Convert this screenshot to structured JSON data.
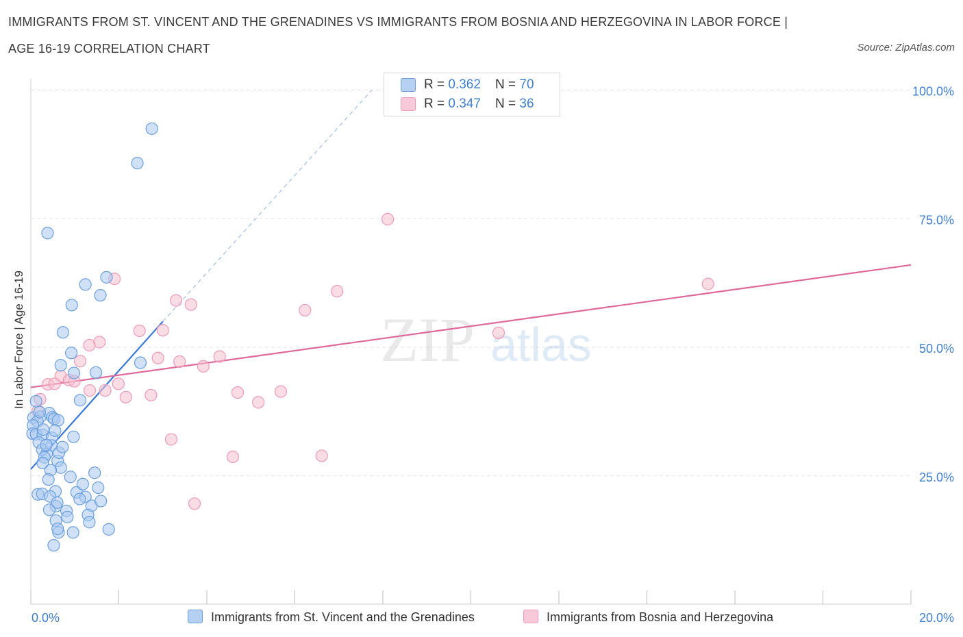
{
  "header": {
    "title_line1": "IMMIGRANTS FROM ST. VINCENT AND THE GRENADINES VS IMMIGRANTS FROM BOSNIA AND HERZEGOVINA IN LABOR FORCE |",
    "title_line2": "AGE 16-19 CORRELATION CHART",
    "source": "Source: ZipAtlas.com"
  },
  "legend": {
    "r_label": "R = ",
    "n_label": "N = ",
    "series1": {
      "r": "0.362",
      "n": "70"
    },
    "series2": {
      "r": "0.347",
      "n": "36"
    }
  },
  "watermark": {
    "zip": "ZIP",
    "atlas": "atlas"
  },
  "colors": {
    "blue_fill": "#a9c8f0",
    "blue_stroke": "#6b9fe0",
    "blue_line": "#3a78d6",
    "pink_fill": "#f6bfd0",
    "pink_stroke": "#ee9ab6",
    "pink_line": "#e0689a",
    "tick_label": "#3f7fd0",
    "grid": "#e3e3e3"
  },
  "chart_data": {
    "type": "scatter",
    "title": "IMMIGRANTS FROM ST. VINCENT AND THE GRENADINES VS IMMIGRANTS FROM BOSNIA AND HERZEGOVINA IN LABOR FORCE | AGE 16-19 CORRELATION CHART",
    "xlabel": "",
    "ylabel": "In Labor Force | Age 16-19",
    "xlim": [
      0,
      20
    ],
    "ylim": [
      0,
      100
    ],
    "x_tick_labels": {
      "left": "0.0%",
      "right": "20.0%"
    },
    "y_ticks": [
      {
        "value": 25,
        "label": "25.0%"
      },
      {
        "value": 50,
        "label": "50.0%"
      },
      {
        "value": 75,
        "label": "75.0%"
      },
      {
        "value": 100,
        "label": "100.0%"
      }
    ],
    "series": [
      {
        "name": "Immigrants from St. Vincent and the Grenadines",
        "color": "blue",
        "points": [
          [
            2.75,
            92.5
          ],
          [
            2.42,
            85.8
          ],
          [
            0.38,
            72.2
          ],
          [
            1.24,
            62.2
          ],
          [
            1.72,
            63.6
          ],
          [
            1.58,
            60.1
          ],
          [
            0.93,
            58.2
          ],
          [
            0.73,
            52.9
          ],
          [
            0.92,
            48.9
          ],
          [
            0.68,
            46.5
          ],
          [
            1.48,
            45.1
          ],
          [
            2.49,
            47.0
          ],
          [
            0.98,
            45.0
          ],
          [
            1.12,
            39.7
          ],
          [
            0.12,
            39.5
          ],
          [
            0.06,
            36.3
          ],
          [
            0.22,
            36.5
          ],
          [
            0.42,
            37.2
          ],
          [
            0.49,
            36.4
          ],
          [
            0.53,
            36.1
          ],
          [
            0.62,
            35.8
          ],
          [
            0.15,
            35.6
          ],
          [
            0.05,
            34.8
          ],
          [
            0.04,
            33.2
          ],
          [
            0.12,
            33.1
          ],
          [
            0.27,
            33.0
          ],
          [
            0.48,
            32.4
          ],
          [
            0.97,
            32.6
          ],
          [
            0.18,
            31.5
          ],
          [
            0.26,
            30.1
          ],
          [
            0.47,
            30.9
          ],
          [
            0.36,
            29.3
          ],
          [
            0.31,
            28.6
          ],
          [
            0.61,
            27.9
          ],
          [
            0.27,
            27.5
          ],
          [
            0.68,
            26.6
          ],
          [
            0.45,
            26.1
          ],
          [
            0.16,
            21.4
          ],
          [
            0.26,
            21.5
          ],
          [
            0.56,
            22.0
          ],
          [
            0.44,
            21.0
          ],
          [
            1.04,
            21.8
          ],
          [
            1.24,
            20.9
          ],
          [
            1.53,
            22.7
          ],
          [
            0.57,
            19.1
          ],
          [
            0.42,
            18.4
          ],
          [
            0.6,
            19.8
          ],
          [
            1.11,
            20.5
          ],
          [
            1.38,
            19.2
          ],
          [
            1.59,
            20.1
          ],
          [
            0.81,
            18.2
          ],
          [
            0.83,
            17.0
          ],
          [
            0.57,
            16.3
          ],
          [
            1.3,
            17.4
          ],
          [
            1.33,
            16.0
          ],
          [
            0.63,
            14.0
          ],
          [
            0.61,
            14.7
          ],
          [
            0.96,
            14.0
          ],
          [
            1.77,
            14.6
          ],
          [
            0.52,
            11.5
          ],
          [
            0.64,
            29.5
          ],
          [
            0.28,
            34.0
          ],
          [
            0.35,
            31.0
          ],
          [
            0.55,
            33.8
          ],
          [
            0.2,
            37.4
          ],
          [
            0.72,
            30.6
          ],
          [
            0.9,
            24.8
          ],
          [
            1.18,
            23.4
          ],
          [
            0.4,
            24.3
          ],
          [
            1.45,
            25.6
          ]
        ],
        "trend": {
          "x0": 0.0,
          "y0": 26.3,
          "x1": 3.0,
          "y1": 55.0,
          "dashed_to": [
            7.75,
            100.0
          ]
        }
      },
      {
        "name": "Immigrants from Bosnia and Herzegovina",
        "color": "pink",
        "points": [
          [
            8.11,
            74.9
          ],
          [
            15.39,
            62.3
          ],
          [
            1.9,
            63.3
          ],
          [
            6.96,
            60.9
          ],
          [
            3.3,
            59.1
          ],
          [
            3.64,
            58.3
          ],
          [
            6.23,
            57.2
          ],
          [
            3.0,
            53.3
          ],
          [
            2.47,
            53.2
          ],
          [
            10.63,
            52.8
          ],
          [
            1.56,
            51.0
          ],
          [
            1.33,
            50.4
          ],
          [
            4.29,
            48.2
          ],
          [
            2.89,
            47.9
          ],
          [
            3.38,
            47.2
          ],
          [
            3.92,
            46.3
          ],
          [
            1.12,
            47.3
          ],
          [
            0.68,
            44.4
          ],
          [
            0.87,
            43.6
          ],
          [
            0.39,
            42.8
          ],
          [
            0.54,
            42.9
          ],
          [
            0.99,
            43.4
          ],
          [
            1.34,
            41.6
          ],
          [
            1.69,
            41.6
          ],
          [
            1.99,
            42.9
          ],
          [
            2.16,
            40.3
          ],
          [
            2.73,
            40.7
          ],
          [
            4.7,
            41.2
          ],
          [
            5.68,
            41.4
          ],
          [
            5.17,
            39.3
          ],
          [
            0.21,
            39.9
          ],
          [
            0.16,
            37.6
          ],
          [
            3.19,
            32.1
          ],
          [
            4.59,
            28.7
          ],
          [
            6.61,
            28.9
          ],
          [
            3.72,
            19.6
          ]
        ],
        "trend": {
          "x0": 0.0,
          "y0": 42.2,
          "x1": 20.0,
          "y1": 66.0
        }
      }
    ]
  },
  "bottom_legend": {
    "series1": "Immigrants from St. Vincent and the Grenadines",
    "series2": "Immigrants from Bosnia and Herzegovina"
  }
}
